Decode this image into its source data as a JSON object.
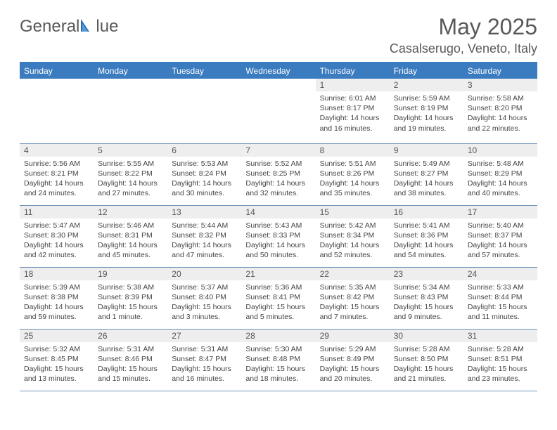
{
  "logo": {
    "text_left": "General",
    "text_right": "lue",
    "accent_color": "#2f6fb3",
    "text_color": "#595959"
  },
  "header": {
    "month_title": "May 2025",
    "location": "Casalserugo, Veneto, Italy"
  },
  "colors": {
    "header_bg": "#3b7bbf",
    "header_text": "#ffffff",
    "daynum_bg": "#eeeeee",
    "rule": "#6d93b8"
  },
  "weekdays": [
    "Sunday",
    "Monday",
    "Tuesday",
    "Wednesday",
    "Thursday",
    "Friday",
    "Saturday"
  ],
  "weeks": [
    [
      {
        "empty": true
      },
      {
        "empty": true
      },
      {
        "empty": true
      },
      {
        "empty": true
      },
      {
        "day": "1",
        "sunrise": "Sunrise: 6:01 AM",
        "sunset": "Sunset: 8:17 PM",
        "daylight1": "Daylight: 14 hours",
        "daylight2": "and 16 minutes."
      },
      {
        "day": "2",
        "sunrise": "Sunrise: 5:59 AM",
        "sunset": "Sunset: 8:19 PM",
        "daylight1": "Daylight: 14 hours",
        "daylight2": "and 19 minutes."
      },
      {
        "day": "3",
        "sunrise": "Sunrise: 5:58 AM",
        "sunset": "Sunset: 8:20 PM",
        "daylight1": "Daylight: 14 hours",
        "daylight2": "and 22 minutes."
      }
    ],
    [
      {
        "day": "4",
        "sunrise": "Sunrise: 5:56 AM",
        "sunset": "Sunset: 8:21 PM",
        "daylight1": "Daylight: 14 hours",
        "daylight2": "and 24 minutes."
      },
      {
        "day": "5",
        "sunrise": "Sunrise: 5:55 AM",
        "sunset": "Sunset: 8:22 PM",
        "daylight1": "Daylight: 14 hours",
        "daylight2": "and 27 minutes."
      },
      {
        "day": "6",
        "sunrise": "Sunrise: 5:53 AM",
        "sunset": "Sunset: 8:24 PM",
        "daylight1": "Daylight: 14 hours",
        "daylight2": "and 30 minutes."
      },
      {
        "day": "7",
        "sunrise": "Sunrise: 5:52 AM",
        "sunset": "Sunset: 8:25 PM",
        "daylight1": "Daylight: 14 hours",
        "daylight2": "and 32 minutes."
      },
      {
        "day": "8",
        "sunrise": "Sunrise: 5:51 AM",
        "sunset": "Sunset: 8:26 PM",
        "daylight1": "Daylight: 14 hours",
        "daylight2": "and 35 minutes."
      },
      {
        "day": "9",
        "sunrise": "Sunrise: 5:49 AM",
        "sunset": "Sunset: 8:27 PM",
        "daylight1": "Daylight: 14 hours",
        "daylight2": "and 38 minutes."
      },
      {
        "day": "10",
        "sunrise": "Sunrise: 5:48 AM",
        "sunset": "Sunset: 8:29 PM",
        "daylight1": "Daylight: 14 hours",
        "daylight2": "and 40 minutes."
      }
    ],
    [
      {
        "day": "11",
        "sunrise": "Sunrise: 5:47 AM",
        "sunset": "Sunset: 8:30 PM",
        "daylight1": "Daylight: 14 hours",
        "daylight2": "and 42 minutes."
      },
      {
        "day": "12",
        "sunrise": "Sunrise: 5:46 AM",
        "sunset": "Sunset: 8:31 PM",
        "daylight1": "Daylight: 14 hours",
        "daylight2": "and 45 minutes."
      },
      {
        "day": "13",
        "sunrise": "Sunrise: 5:44 AM",
        "sunset": "Sunset: 8:32 PM",
        "daylight1": "Daylight: 14 hours",
        "daylight2": "and 47 minutes."
      },
      {
        "day": "14",
        "sunrise": "Sunrise: 5:43 AM",
        "sunset": "Sunset: 8:33 PM",
        "daylight1": "Daylight: 14 hours",
        "daylight2": "and 50 minutes."
      },
      {
        "day": "15",
        "sunrise": "Sunrise: 5:42 AM",
        "sunset": "Sunset: 8:34 PM",
        "daylight1": "Daylight: 14 hours",
        "daylight2": "and 52 minutes."
      },
      {
        "day": "16",
        "sunrise": "Sunrise: 5:41 AM",
        "sunset": "Sunset: 8:36 PM",
        "daylight1": "Daylight: 14 hours",
        "daylight2": "and 54 minutes."
      },
      {
        "day": "17",
        "sunrise": "Sunrise: 5:40 AM",
        "sunset": "Sunset: 8:37 PM",
        "daylight1": "Daylight: 14 hours",
        "daylight2": "and 57 minutes."
      }
    ],
    [
      {
        "day": "18",
        "sunrise": "Sunrise: 5:39 AM",
        "sunset": "Sunset: 8:38 PM",
        "daylight1": "Daylight: 14 hours",
        "daylight2": "and 59 minutes."
      },
      {
        "day": "19",
        "sunrise": "Sunrise: 5:38 AM",
        "sunset": "Sunset: 8:39 PM",
        "daylight1": "Daylight: 15 hours",
        "daylight2": "and 1 minute."
      },
      {
        "day": "20",
        "sunrise": "Sunrise: 5:37 AM",
        "sunset": "Sunset: 8:40 PM",
        "daylight1": "Daylight: 15 hours",
        "daylight2": "and 3 minutes."
      },
      {
        "day": "21",
        "sunrise": "Sunrise: 5:36 AM",
        "sunset": "Sunset: 8:41 PM",
        "daylight1": "Daylight: 15 hours",
        "daylight2": "and 5 minutes."
      },
      {
        "day": "22",
        "sunrise": "Sunrise: 5:35 AM",
        "sunset": "Sunset: 8:42 PM",
        "daylight1": "Daylight: 15 hours",
        "daylight2": "and 7 minutes."
      },
      {
        "day": "23",
        "sunrise": "Sunrise: 5:34 AM",
        "sunset": "Sunset: 8:43 PM",
        "daylight1": "Daylight: 15 hours",
        "daylight2": "and 9 minutes."
      },
      {
        "day": "24",
        "sunrise": "Sunrise: 5:33 AM",
        "sunset": "Sunset: 8:44 PM",
        "daylight1": "Daylight: 15 hours",
        "daylight2": "and 11 minutes."
      }
    ],
    [
      {
        "day": "25",
        "sunrise": "Sunrise: 5:32 AM",
        "sunset": "Sunset: 8:45 PM",
        "daylight1": "Daylight: 15 hours",
        "daylight2": "and 13 minutes."
      },
      {
        "day": "26",
        "sunrise": "Sunrise: 5:31 AM",
        "sunset": "Sunset: 8:46 PM",
        "daylight1": "Daylight: 15 hours",
        "daylight2": "and 15 minutes."
      },
      {
        "day": "27",
        "sunrise": "Sunrise: 5:31 AM",
        "sunset": "Sunset: 8:47 PM",
        "daylight1": "Daylight: 15 hours",
        "daylight2": "and 16 minutes."
      },
      {
        "day": "28",
        "sunrise": "Sunrise: 5:30 AM",
        "sunset": "Sunset: 8:48 PM",
        "daylight1": "Daylight: 15 hours",
        "daylight2": "and 18 minutes."
      },
      {
        "day": "29",
        "sunrise": "Sunrise: 5:29 AM",
        "sunset": "Sunset: 8:49 PM",
        "daylight1": "Daylight: 15 hours",
        "daylight2": "and 20 minutes."
      },
      {
        "day": "30",
        "sunrise": "Sunrise: 5:28 AM",
        "sunset": "Sunset: 8:50 PM",
        "daylight1": "Daylight: 15 hours",
        "daylight2": "and 21 minutes."
      },
      {
        "day": "31",
        "sunrise": "Sunrise: 5:28 AM",
        "sunset": "Sunset: 8:51 PM",
        "daylight1": "Daylight: 15 hours",
        "daylight2": "and 23 minutes."
      }
    ]
  ]
}
